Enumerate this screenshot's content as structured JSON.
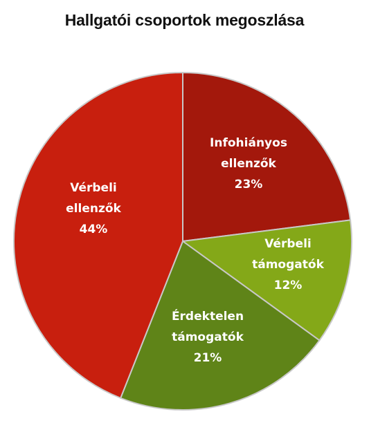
{
  "chart_data": {
    "type": "pie",
    "title": "Hallgatói csoportok megoszlása",
    "start_angle_deg": 0,
    "direction": "clockwise",
    "slices": [
      {
        "label": [
          "Infohiányos",
          "ellenzők"
        ],
        "value": 23,
        "value_label": "23%",
        "color": "#a3180c"
      },
      {
        "label": [
          "Vérbeli",
          "támogatók"
        ],
        "value": 12,
        "value_label": "12%",
        "color": "#84a818"
      },
      {
        "label": [
          "Érdektelen",
          "támogatók"
        ],
        "value": 21,
        "value_label": "21%",
        "color": "#5f8418"
      },
      {
        "label": [
          "Vérbeli",
          "ellenzők"
        ],
        "value": 44,
        "value_label": "44%",
        "color": "#c81f0e"
      }
    ],
    "slice_border_color": "#c8c8c8"
  }
}
